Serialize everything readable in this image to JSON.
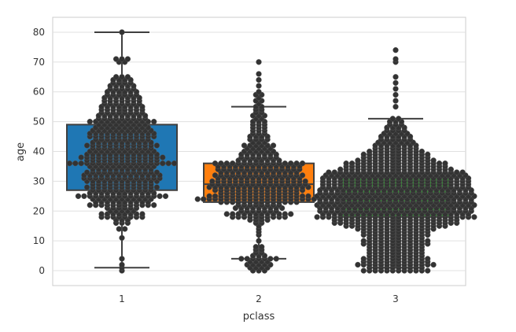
{
  "chart_data": {
    "type": "box",
    "overlay": "swarm",
    "xlabel": "pclass",
    "ylabel": "age",
    "categories": [
      "1",
      "2",
      "3"
    ],
    "ylim": [
      -5,
      85
    ],
    "yticks": [
      0,
      10,
      20,
      30,
      40,
      50,
      60,
      70,
      80
    ],
    "grid": true,
    "legend": "none",
    "boxes": [
      {
        "category": "1",
        "min": 1,
        "q1": 27,
        "median": 36,
        "q3": 49,
        "max": 80,
        "outliers": [],
        "color": "#1f77b4"
      },
      {
        "category": "2",
        "min": 4,
        "q1": 23,
        "median": 29,
        "q3": 36,
        "max": 55,
        "outliers": [
          56,
          57,
          58,
          59,
          60,
          62,
          64,
          66,
          70
        ],
        "color": "#ff7f0e"
      },
      {
        "category": "3",
        "min": 1,
        "q1": 18,
        "median": 24,
        "q3": 32,
        "max": 51,
        "outliers": [
          55,
          57,
          59,
          61,
          63,
          65,
          70,
          71,
          74
        ],
        "color": "#2ca02c"
      }
    ],
    "swarm": [
      {
        "category": "1",
        "bins": [
          [
            0,
            1
          ],
          [
            1,
            1
          ],
          [
            2,
            1
          ],
          [
            4,
            1
          ],
          [
            11,
            1
          ],
          [
            14,
            2
          ],
          [
            16,
            3
          ],
          [
            17,
            3
          ],
          [
            18,
            8
          ],
          [
            19,
            8
          ],
          [
            20,
            5
          ],
          [
            21,
            6
          ],
          [
            22,
            12
          ],
          [
            23,
            10
          ],
          [
            24,
            11
          ],
          [
            25,
            16
          ],
          [
            26,
            12
          ],
          [
            27,
            11
          ],
          [
            28,
            13
          ],
          [
            29,
            11
          ],
          [
            30,
            13
          ],
          [
            31,
            14
          ],
          [
            32,
            14
          ],
          [
            33,
            13
          ],
          [
            34,
            11
          ],
          [
            35,
            12
          ],
          [
            36,
            19
          ],
          [
            37,
            13
          ],
          [
            38,
            15
          ],
          [
            39,
            13
          ],
          [
            40,
            12
          ],
          [
            41,
            11
          ],
          [
            42,
            13
          ],
          [
            43,
            11
          ],
          [
            44,
            10
          ],
          [
            45,
            12
          ],
          [
            46,
            12
          ],
          [
            47,
            11
          ],
          [
            48,
            10
          ],
          [
            49,
            9
          ],
          [
            50,
            12
          ],
          [
            51,
            9
          ],
          [
            52,
            9
          ],
          [
            53,
            8
          ],
          [
            54,
            8
          ],
          [
            55,
            8
          ],
          [
            56,
            7
          ],
          [
            57,
            7
          ],
          [
            58,
            7
          ],
          [
            59,
            6
          ],
          [
            60,
            6
          ],
          [
            61,
            5
          ],
          [
            62,
            5
          ],
          [
            63,
            4
          ],
          [
            64,
            4
          ],
          [
            65,
            3
          ],
          [
            70,
            2
          ],
          [
            71,
            3
          ],
          [
            80,
            1
          ]
        ]
      },
      {
        "category": "2",
        "bins": [
          [
            0,
            3
          ],
          [
            1,
            4
          ],
          [
            2,
            5
          ],
          [
            3,
            4
          ],
          [
            4,
            7
          ],
          [
            5,
            3
          ],
          [
            6,
            2
          ],
          [
            7,
            2
          ],
          [
            8,
            2
          ],
          [
            10,
            1
          ],
          [
            12,
            1
          ],
          [
            13,
            1
          ],
          [
            14,
            1
          ],
          [
            15,
            1
          ],
          [
            16,
            2
          ],
          [
            17,
            4
          ],
          [
            18,
            10
          ],
          [
            19,
            12
          ],
          [
            20,
            7
          ],
          [
            21,
            9
          ],
          [
            22,
            8
          ],
          [
            23,
            14
          ],
          [
            24,
            22
          ],
          [
            25,
            18
          ],
          [
            26,
            14
          ],
          [
            27,
            16
          ],
          [
            28,
            18
          ],
          [
            29,
            17
          ],
          [
            30,
            17
          ],
          [
            31,
            15
          ],
          [
            32,
            16
          ],
          [
            33,
            14
          ],
          [
            34,
            15
          ],
          [
            35,
            15
          ],
          [
            36,
            16
          ],
          [
            37,
            8
          ],
          [
            38,
            7
          ],
          [
            39,
            7
          ],
          [
            40,
            6
          ],
          [
            41,
            5
          ],
          [
            42,
            6
          ],
          [
            43,
            3
          ],
          [
            44,
            4
          ],
          [
            45,
            4
          ],
          [
            46,
            3
          ],
          [
            47,
            3
          ],
          [
            48,
            3
          ],
          [
            49,
            3
          ],
          [
            50,
            3
          ],
          [
            51,
            2
          ],
          [
            52,
            3
          ],
          [
            53,
            2
          ],
          [
            54,
            2
          ],
          [
            55,
            2
          ],
          [
            56,
            1
          ],
          [
            57,
            2
          ],
          [
            58,
            1
          ],
          [
            59,
            2
          ],
          [
            60,
            1
          ],
          [
            62,
            1
          ],
          [
            64,
            1
          ],
          [
            66,
            1
          ],
          [
            70,
            1
          ]
        ]
      },
      {
        "category": "3",
        "bins": [
          [
            0,
            12
          ],
          [
            1,
            10
          ],
          [
            2,
            14
          ],
          [
            3,
            12
          ],
          [
            4,
            12
          ],
          [
            5,
            10
          ],
          [
            6,
            10
          ],
          [
            7,
            10
          ],
          [
            8,
            10
          ],
          [
            9,
            12
          ],
          [
            10,
            12
          ],
          [
            11,
            10
          ],
          [
            12,
            12
          ],
          [
            13,
            12
          ],
          [
            14,
            14
          ],
          [
            15,
            18
          ],
          [
            16,
            22
          ],
          [
            17,
            22
          ],
          [
            18,
            28
          ],
          [
            19,
            26
          ],
          [
            20,
            27
          ],
          [
            21,
            27
          ],
          [
            22,
            28
          ],
          [
            23,
            27
          ],
          [
            24,
            27
          ],
          [
            25,
            28
          ],
          [
            26,
            27
          ],
          [
            27,
            27
          ],
          [
            28,
            26
          ],
          [
            29,
            26
          ],
          [
            30,
            26
          ],
          [
            31,
            26
          ],
          [
            32,
            25
          ],
          [
            33,
            24
          ],
          [
            34,
            20
          ],
          [
            35,
            18
          ],
          [
            36,
            18
          ],
          [
            37,
            14
          ],
          [
            38,
            12
          ],
          [
            39,
            12
          ],
          [
            40,
            10
          ],
          [
            41,
            8
          ],
          [
            42,
            8
          ],
          [
            43,
            7
          ],
          [
            44,
            6
          ],
          [
            45,
            6
          ],
          [
            46,
            5
          ],
          [
            47,
            4
          ],
          [
            48,
            4
          ],
          [
            49,
            3
          ],
          [
            50,
            3
          ],
          [
            51,
            2
          ],
          [
            55,
            1
          ],
          [
            57,
            1
          ],
          [
            59,
            1
          ],
          [
            61,
            1
          ],
          [
            63,
            1
          ],
          [
            65,
            1
          ],
          [
            70,
            1
          ],
          [
            71,
            1
          ],
          [
            74,
            1
          ]
        ]
      }
    ]
  }
}
